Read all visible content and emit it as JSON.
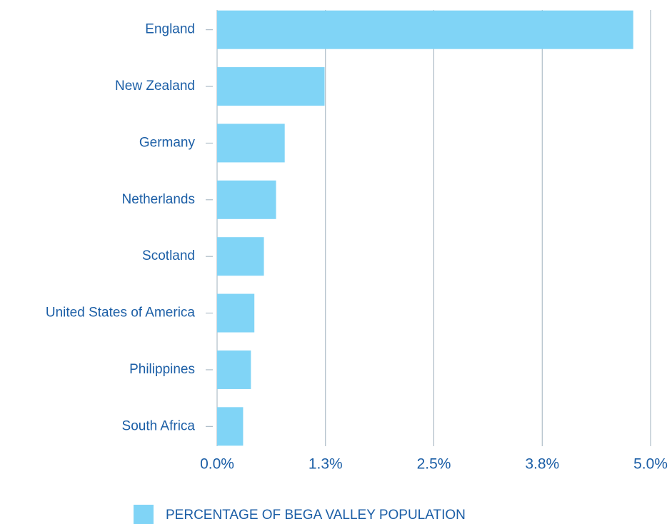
{
  "chart_data": {
    "type": "bar",
    "orientation": "horizontal",
    "categories": [
      "England",
      "New Zealand",
      "Germany",
      "Netherlands",
      "Scotland",
      "United States of America",
      "Philippines",
      "South Africa"
    ],
    "series": [
      {
        "name": "PERCENTAGE OF BEGA VALLEY POPULATION",
        "color": "#80d4f6",
        "values": [
          4.8,
          1.24,
          0.78,
          0.68,
          0.54,
          0.43,
          0.39,
          0.3
        ]
      }
    ],
    "xlim": [
      0,
      5
    ],
    "xticks": [
      {
        "value": 0,
        "label": "0.0%"
      },
      {
        "value": 1.25,
        "label": "1.3%"
      },
      {
        "value": 2.5,
        "label": "2.5%"
      },
      {
        "value": 3.75,
        "label": "3.8%"
      },
      {
        "value": 5,
        "label": "5.0%"
      }
    ],
    "grid": true,
    "legend": "bottom"
  }
}
